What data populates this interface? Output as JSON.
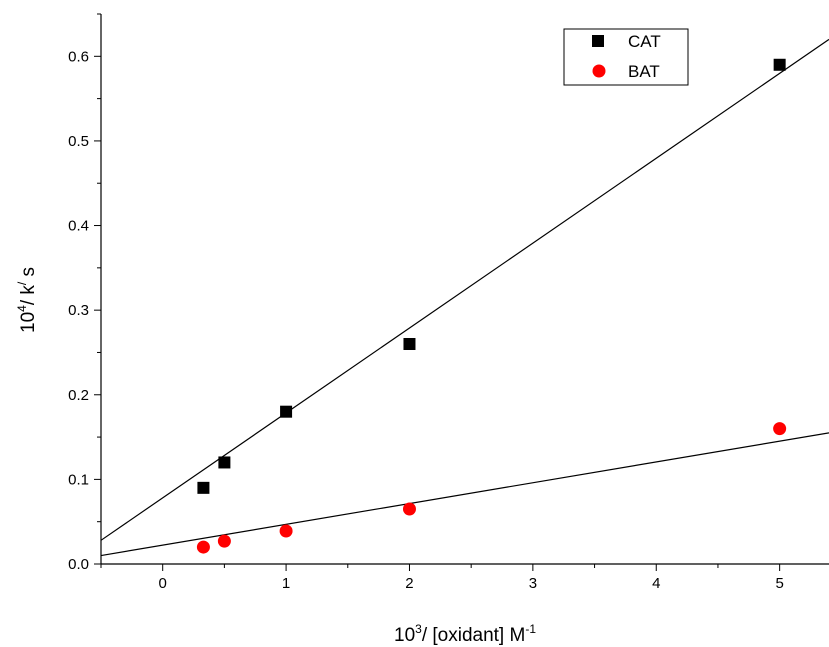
{
  "chart_data": {
    "type": "scatter",
    "xlabel": {
      "base": "10",
      "base_sup": "3",
      "rest": "/ [oxidant] M",
      "rest_sup": "-1"
    },
    "ylabel": {
      "base": "10",
      "base_sup": "4",
      "mid": "/ k",
      "mid_sup": "/",
      "rest": " s"
    },
    "xlim": [
      -0.5,
      5.4
    ],
    "ylim": [
      0.0,
      0.65
    ],
    "xticks": [
      0,
      1,
      2,
      3,
      4,
      5
    ],
    "xtick_labels": [
      "0",
      "1",
      "2",
      "3",
      "4",
      "5"
    ],
    "yticks": [
      0.0,
      0.1,
      0.2,
      0.3,
      0.4,
      0.5,
      0.6
    ],
    "ytick_labels": [
      "0.0",
      "0.1",
      "0.2",
      "0.3",
      "0.4",
      "0.5",
      "0.6"
    ],
    "legend_position": "top-right",
    "grid": false,
    "series": [
      {
        "name": "CAT",
        "marker": "square",
        "color": "#000000",
        "points": [
          {
            "x": 0.33,
            "y": 0.09
          },
          {
            "x": 0.5,
            "y": 0.12
          },
          {
            "x": 1.0,
            "y": 0.18
          },
          {
            "x": 2.0,
            "y": 0.26
          },
          {
            "x": 5.0,
            "y": 0.59
          }
        ],
        "fit_line": {
          "x": [
            -0.5,
            5.4
          ],
          "y": [
            0.028,
            0.62
          ]
        }
      },
      {
        "name": "BAT",
        "marker": "circle",
        "color": "#ff0000",
        "points": [
          {
            "x": 0.33,
            "y": 0.02
          },
          {
            "x": 0.5,
            "y": 0.027
          },
          {
            "x": 1.0,
            "y": 0.039
          },
          {
            "x": 2.0,
            "y": 0.065
          },
          {
            "x": 5.0,
            "y": 0.16
          }
        ],
        "fit_line": {
          "x": [
            -0.5,
            5.4
          ],
          "y": [
            0.01,
            0.155
          ]
        }
      }
    ]
  }
}
